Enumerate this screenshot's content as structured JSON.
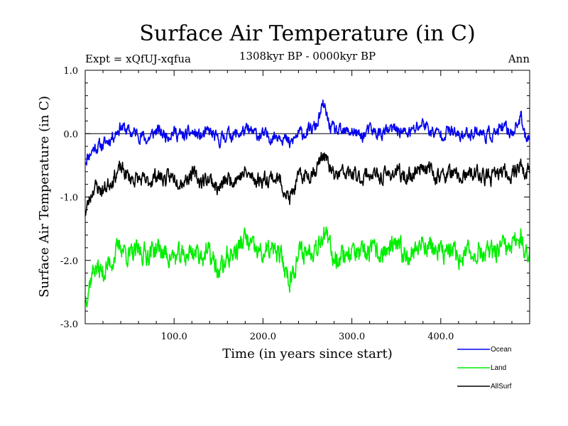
{
  "chart_data": {
    "type": "line",
    "title": "Surface Air Temperature (in C)",
    "expt_label": "Expt = xQfUJ-xqfua",
    "period_label": "1308kyr BP - 0000kyr BP",
    "season_label": "Ann",
    "xlabel": "Time (in years since start)",
    "ylabel": "Surface Air Temperature (in C)",
    "xlim": [
      0,
      500
    ],
    "ylim": [
      -3.0,
      1.0
    ],
    "xticks": [
      100,
      200,
      300,
      400
    ],
    "xtick_labels": [
      "100.0",
      "200.0",
      "300.0",
      "400.0"
    ],
    "yticks": [
      1.0,
      0.0,
      -1.0,
      -2.0,
      -3.0
    ],
    "ytick_labels": [
      "1.0",
      "0.0",
      "-1.0",
      "-2.0",
      "-3.0"
    ],
    "reference_line": 0.0,
    "legend_position": "bottom-right, outside plot",
    "series": [
      {
        "name": "Ocean",
        "color": "#0000ee",
        "anchors": [
          [
            0,
            -0.42
          ],
          [
            10,
            -0.22
          ],
          [
            20,
            -0.18
          ],
          [
            30,
            -0.05
          ],
          [
            40,
            0.12
          ],
          [
            50,
            0.02
          ],
          [
            60,
            0.0
          ],
          [
            70,
            -0.1
          ],
          [
            80,
            0.05
          ],
          [
            90,
            -0.02
          ],
          [
            100,
            0.03
          ],
          [
            110,
            -0.05
          ],
          [
            120,
            0.02
          ],
          [
            130,
            -0.05
          ],
          [
            140,
            0.03
          ],
          [
            150,
            -0.12
          ],
          [
            160,
            0.0
          ],
          [
            170,
            -0.02
          ],
          [
            180,
            0.05
          ],
          [
            190,
            0.0
          ],
          [
            200,
            -0.03
          ],
          [
            210,
            -0.05
          ],
          [
            220,
            0.0
          ],
          [
            230,
            -0.18
          ],
          [
            240,
            0.0
          ],
          [
            250,
            0.02
          ],
          [
            260,
            0.12
          ],
          [
            268,
            0.45
          ],
          [
            275,
            0.12
          ],
          [
            280,
            0.05
          ],
          [
            290,
            0.0
          ],
          [
            300,
            0.05
          ],
          [
            310,
            -0.05
          ],
          [
            320,
            0.05
          ],
          [
            330,
            0.0
          ],
          [
            340,
            0.03
          ],
          [
            350,
            0.08
          ],
          [
            360,
            0.0
          ],
          [
            370,
            0.05
          ],
          [
            380,
            0.18
          ],
          [
            390,
            0.02
          ],
          [
            400,
            0.0
          ],
          [
            410,
            0.05
          ],
          [
            420,
            -0.05
          ],
          [
            430,
            0.0
          ],
          [
            440,
            0.05
          ],
          [
            450,
            -0.02
          ],
          [
            460,
            0.0
          ],
          [
            470,
            0.08
          ],
          [
            480,
            0.02
          ],
          [
            490,
            0.25
          ],
          [
            495,
            -0.05
          ],
          [
            500,
            0.0
          ]
        ],
        "noise": 0.12,
        "seed": 11
      },
      {
        "name": "AllSurf",
        "color": "#000000",
        "anchors": [
          [
            0,
            -1.25
          ],
          [
            10,
            -0.82
          ],
          [
            20,
            -0.9
          ],
          [
            30,
            -0.72
          ],
          [
            40,
            -0.55
          ],
          [
            50,
            -0.7
          ],
          [
            60,
            -0.72
          ],
          [
            70,
            -0.78
          ],
          [
            80,
            -0.65
          ],
          [
            90,
            -0.72
          ],
          [
            100,
            -0.68
          ],
          [
            110,
            -0.75
          ],
          [
            120,
            -0.62
          ],
          [
            130,
            -0.75
          ],
          [
            140,
            -0.7
          ],
          [
            150,
            -0.88
          ],
          [
            160,
            -0.72
          ],
          [
            170,
            -0.7
          ],
          [
            180,
            -0.62
          ],
          [
            190,
            -0.72
          ],
          [
            200,
            -0.72
          ],
          [
            210,
            -0.68
          ],
          [
            220,
            -0.75
          ],
          [
            230,
            -1.05
          ],
          [
            240,
            -0.7
          ],
          [
            250,
            -0.65
          ],
          [
            260,
            -0.55
          ],
          [
            268,
            -0.3
          ],
          [
            275,
            -0.55
          ],
          [
            280,
            -0.68
          ],
          [
            290,
            -0.62
          ],
          [
            300,
            -0.65
          ],
          [
            310,
            -0.7
          ],
          [
            320,
            -0.62
          ],
          [
            330,
            -0.7
          ],
          [
            340,
            -0.65
          ],
          [
            350,
            -0.6
          ],
          [
            360,
            -0.7
          ],
          [
            370,
            -0.62
          ],
          [
            380,
            -0.48
          ],
          [
            390,
            -0.62
          ],
          [
            400,
            -0.68
          ],
          [
            410,
            -0.62
          ],
          [
            420,
            -0.7
          ],
          [
            430,
            -0.68
          ],
          [
            440,
            -0.62
          ],
          [
            450,
            -0.7
          ],
          [
            460,
            -0.68
          ],
          [
            470,
            -0.6
          ],
          [
            480,
            -0.65
          ],
          [
            490,
            -0.45
          ],
          [
            495,
            -0.7
          ],
          [
            500,
            -0.55
          ]
        ],
        "noise": 0.14,
        "seed": 23
      },
      {
        "name": "Land",
        "color": "#00ee00",
        "anchors": [
          [
            0,
            -2.6
          ],
          [
            10,
            -2.1
          ],
          [
            20,
            -2.2
          ],
          [
            30,
            -2.0
          ],
          [
            40,
            -1.75
          ],
          [
            50,
            -1.95
          ],
          [
            60,
            -1.85
          ],
          [
            70,
            -1.9
          ],
          [
            80,
            -1.8
          ],
          [
            90,
            -1.9
          ],
          [
            100,
            -1.95
          ],
          [
            110,
            -1.95
          ],
          [
            120,
            -1.85
          ],
          [
            130,
            -1.9
          ],
          [
            140,
            -1.9
          ],
          [
            150,
            -2.2
          ],
          [
            160,
            -1.95
          ],
          [
            170,
            -1.85
          ],
          [
            180,
            -1.65
          ],
          [
            190,
            -1.85
          ],
          [
            200,
            -1.9
          ],
          [
            210,
            -1.85
          ],
          [
            220,
            -1.95
          ],
          [
            230,
            -2.3
          ],
          [
            240,
            -1.9
          ],
          [
            250,
            -1.85
          ],
          [
            260,
            -1.75
          ],
          [
            268,
            -1.55
          ],
          [
            275,
            -1.8
          ],
          [
            280,
            -1.95
          ],
          [
            290,
            -1.9
          ],
          [
            300,
            -1.85
          ],
          [
            310,
            -1.95
          ],
          [
            320,
            -1.85
          ],
          [
            330,
            -1.9
          ],
          [
            340,
            -1.85
          ],
          [
            350,
            -1.8
          ],
          [
            360,
            -1.9
          ],
          [
            370,
            -1.85
          ],
          [
            380,
            -1.7
          ],
          [
            390,
            -1.8
          ],
          [
            400,
            -1.9
          ],
          [
            410,
            -1.85
          ],
          [
            420,
            -1.95
          ],
          [
            430,
            -1.9
          ],
          [
            440,
            -1.85
          ],
          [
            450,
            -1.9
          ],
          [
            460,
            -1.9
          ],
          [
            470,
            -1.8
          ],
          [
            480,
            -1.85
          ],
          [
            490,
            -1.55
          ],
          [
            495,
            -1.95
          ],
          [
            500,
            -1.9
          ]
        ],
        "noise": 0.2,
        "seed": 37
      }
    ]
  },
  "legend": {
    "items": [
      {
        "label": "Ocean",
        "color": "#0000ee"
      },
      {
        "label": "Land",
        "color": "#00ee00"
      },
      {
        "label": "AllSurf",
        "color": "#000000"
      }
    ]
  }
}
